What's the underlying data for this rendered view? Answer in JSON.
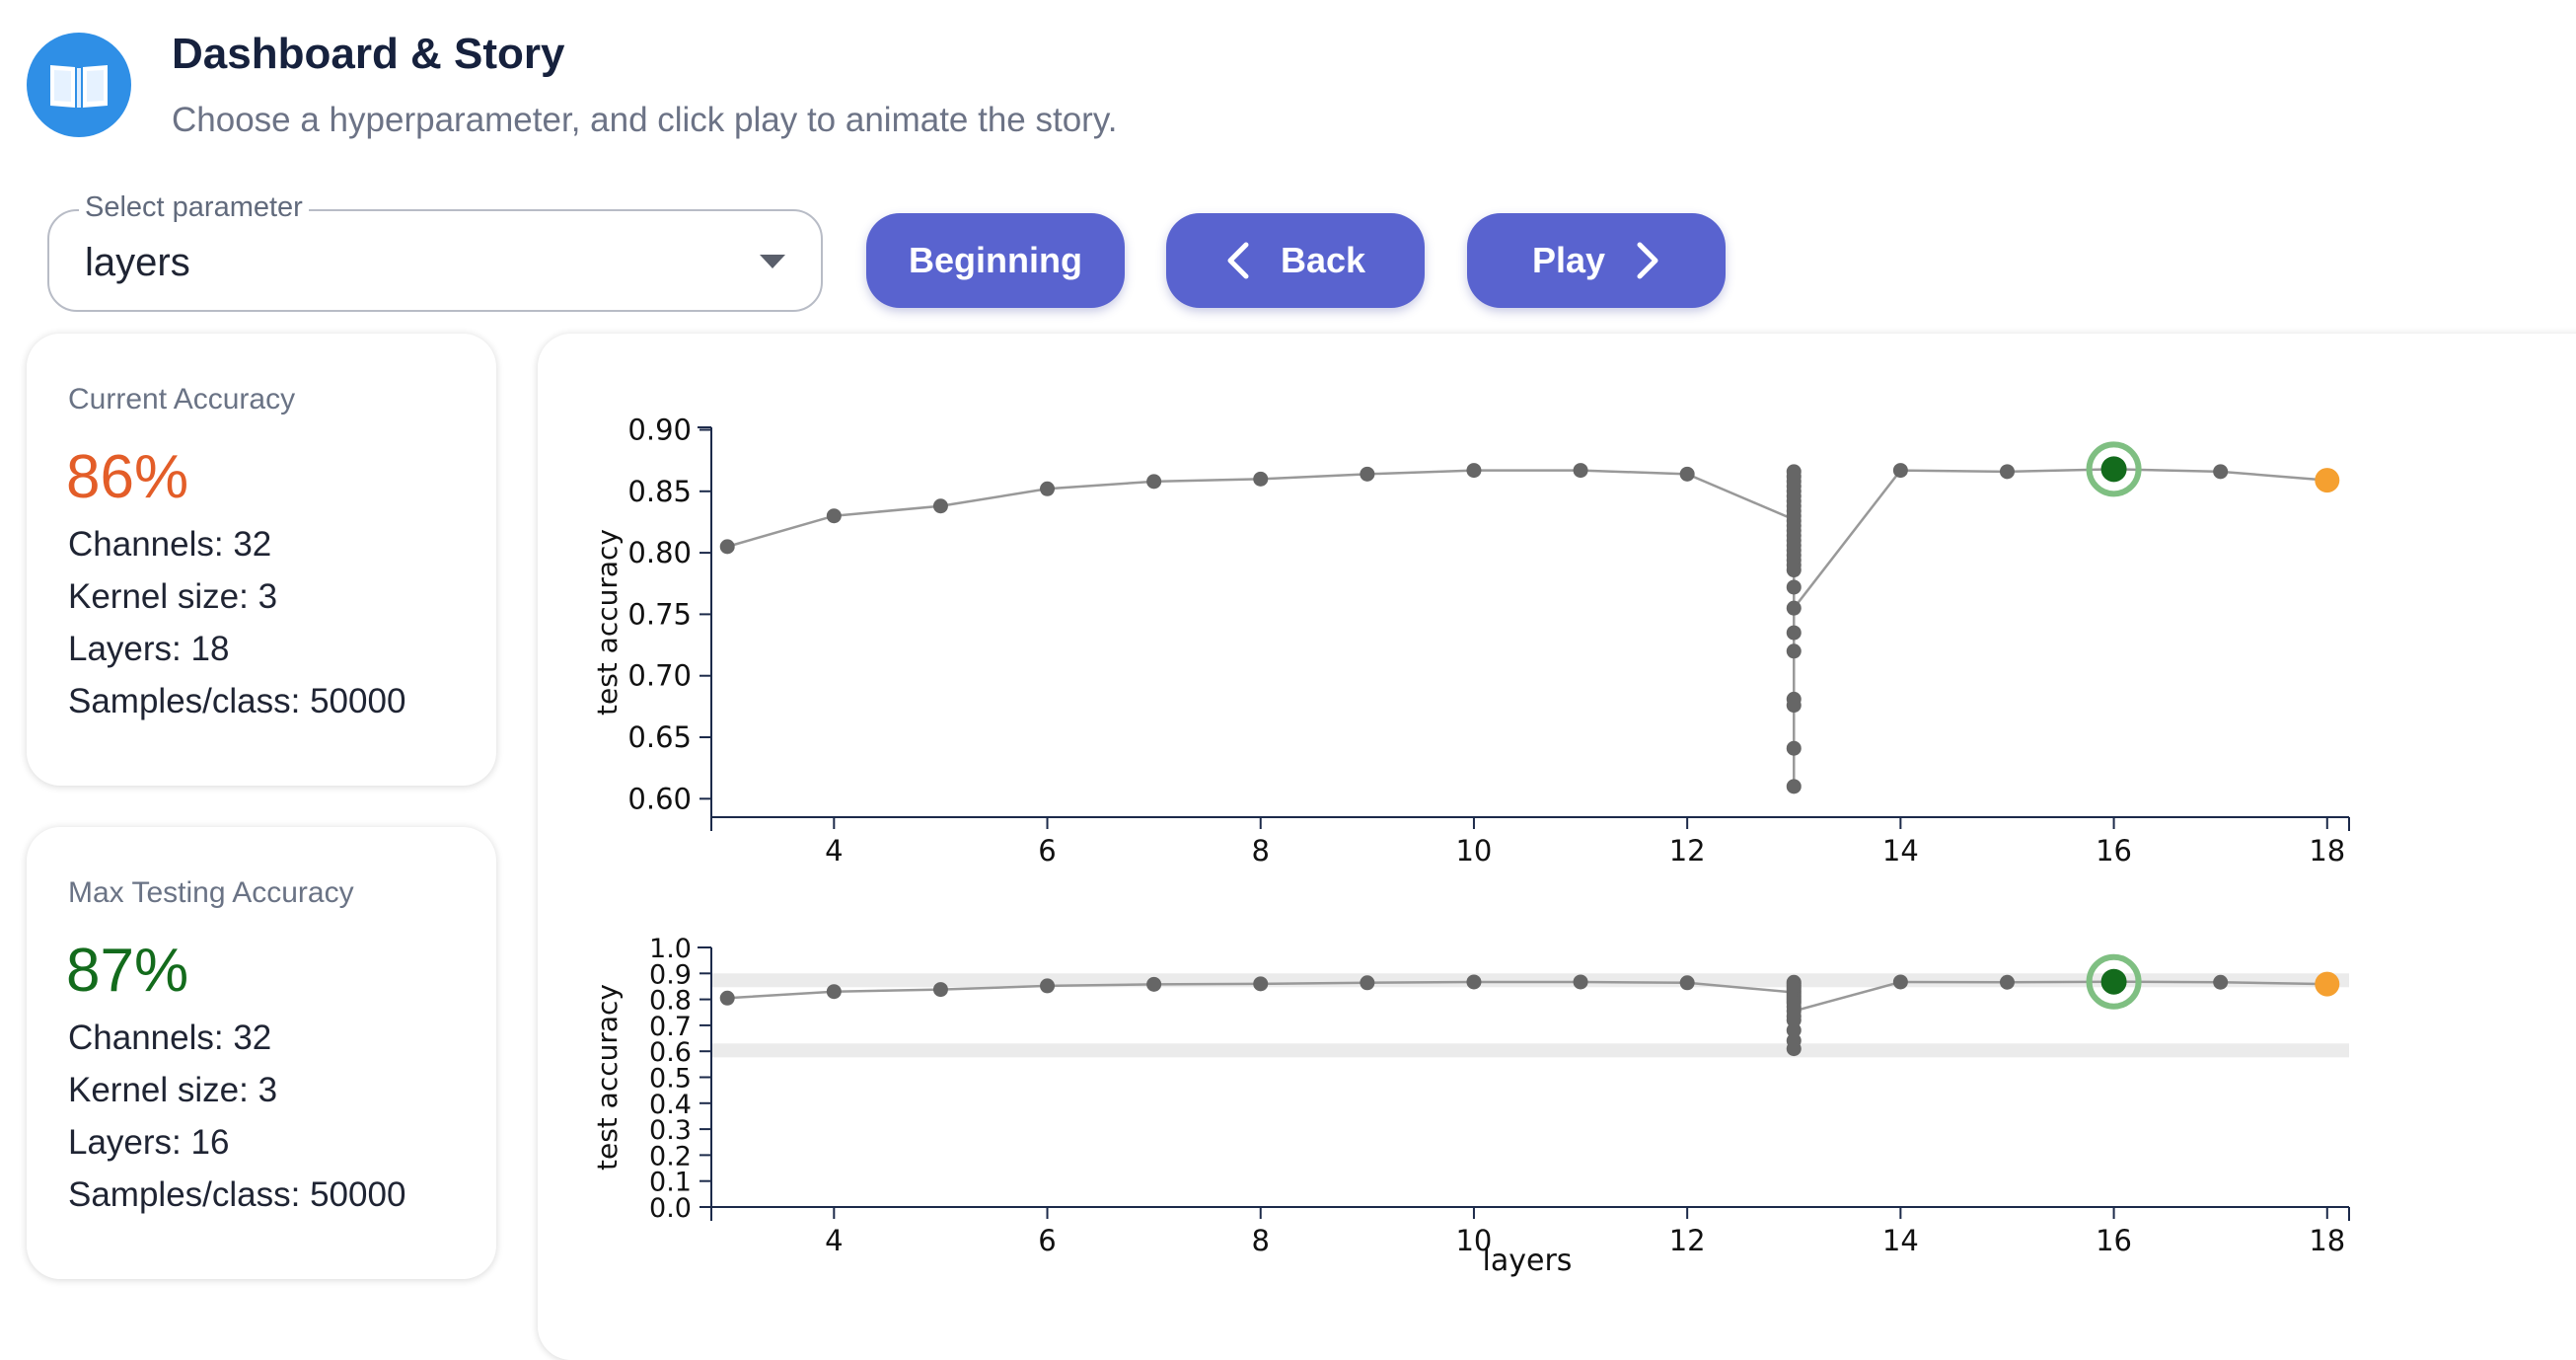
{
  "header": {
    "title": "Dashboard & Story",
    "subtitle": "Choose a hyperparameter, and click play to animate the story.",
    "icon": "book-open-icon"
  },
  "controls": {
    "select_label": "Select parameter",
    "select_value": "layers",
    "beginning_label": "Beginning",
    "back_label": "Back",
    "play_label": "Play"
  },
  "current_card": {
    "label": "Current Accuracy",
    "value": "86%",
    "value_color": "#e35d28",
    "stats": [
      "Channels: 32",
      "Kernel size: 3",
      "Layers: 18",
      "Samples/class: 50000"
    ]
  },
  "max_card": {
    "label": "Max Testing Accuracy",
    "value": "87%",
    "value_color": "#136b1c",
    "stats": [
      "Channels: 32",
      "Kernel size: 3",
      "Layers: 16",
      "Samples/class: 50000"
    ]
  },
  "chart_data": [
    {
      "type": "line",
      "xlabel": "",
      "ylabel": "test accuracy",
      "xlim": [
        2.85,
        18.15
      ],
      "ylim": [
        0.585,
        0.902
      ],
      "xticks": [
        4,
        6,
        8,
        10,
        12,
        14,
        16,
        18
      ],
      "yticks": [
        "0.90",
        "0.85",
        "0.80",
        "0.75",
        "0.70",
        "0.65",
        "0.60"
      ],
      "x": [
        3,
        4,
        5,
        6,
        7,
        8,
        9,
        10,
        11,
        12,
        13,
        14,
        15,
        16,
        17,
        18
      ],
      "y": [
        0.805,
        0.83,
        0.838,
        0.852,
        0.858,
        0.86,
        0.864,
        0.867,
        0.867,
        0.864,
        0.827,
        0.867,
        0.866,
        0.868,
        0.866,
        0.859
      ],
      "x13_values": [
        0.866,
        0.862,
        0.858,
        0.854,
        0.85,
        0.846,
        0.842,
        0.838,
        0.834,
        0.83,
        0.826,
        0.822,
        0.818,
        0.814,
        0.81,
        0.806,
        0.802,
        0.798,
        0.794,
        0.79,
        0.786,
        0.772,
        0.755,
        0.735,
        0.72,
        0.681,
        0.676,
        0.641,
        0.61
      ],
      "x13_path_min": 0.755,
      "highlight_max": {
        "x": 16,
        "y": 0.868,
        "color": "#136b1c"
      },
      "highlight_current": {
        "x": 18,
        "y": 0.859,
        "color": "#f5a030"
      }
    },
    {
      "type": "line",
      "xlabel": "layers",
      "ylabel": "test accuracy",
      "xlim": [
        2.85,
        18.15
      ],
      "ylim": [
        0.0,
        1.0
      ],
      "xticks": [
        4,
        6,
        8,
        10,
        12,
        14,
        16,
        18
      ],
      "yticks": [
        "1.0",
        "0.9",
        "0.8",
        "0.7",
        "0.6",
        "0.5",
        "0.4",
        "0.3",
        "0.2",
        "0.1",
        "0.0"
      ],
      "brush_range": [
        0.6,
        0.9
      ],
      "x": [
        3,
        4,
        5,
        6,
        7,
        8,
        9,
        10,
        11,
        12,
        13,
        14,
        15,
        16,
        17,
        18
      ],
      "y": [
        0.805,
        0.83,
        0.838,
        0.852,
        0.858,
        0.86,
        0.864,
        0.867,
        0.867,
        0.864,
        0.827,
        0.867,
        0.866,
        0.868,
        0.866,
        0.859
      ],
      "x13_values": [
        0.866,
        0.858,
        0.85,
        0.842,
        0.834,
        0.826,
        0.818,
        0.81,
        0.802,
        0.794,
        0.786,
        0.772,
        0.755,
        0.735,
        0.72,
        0.681,
        0.641,
        0.61
      ],
      "x13_path_min": 0.755,
      "highlight_max": {
        "x": 16,
        "y": 0.868,
        "color": "#136b1c"
      },
      "highlight_current": {
        "x": 18,
        "y": 0.859,
        "color": "#f5a030"
      }
    }
  ]
}
